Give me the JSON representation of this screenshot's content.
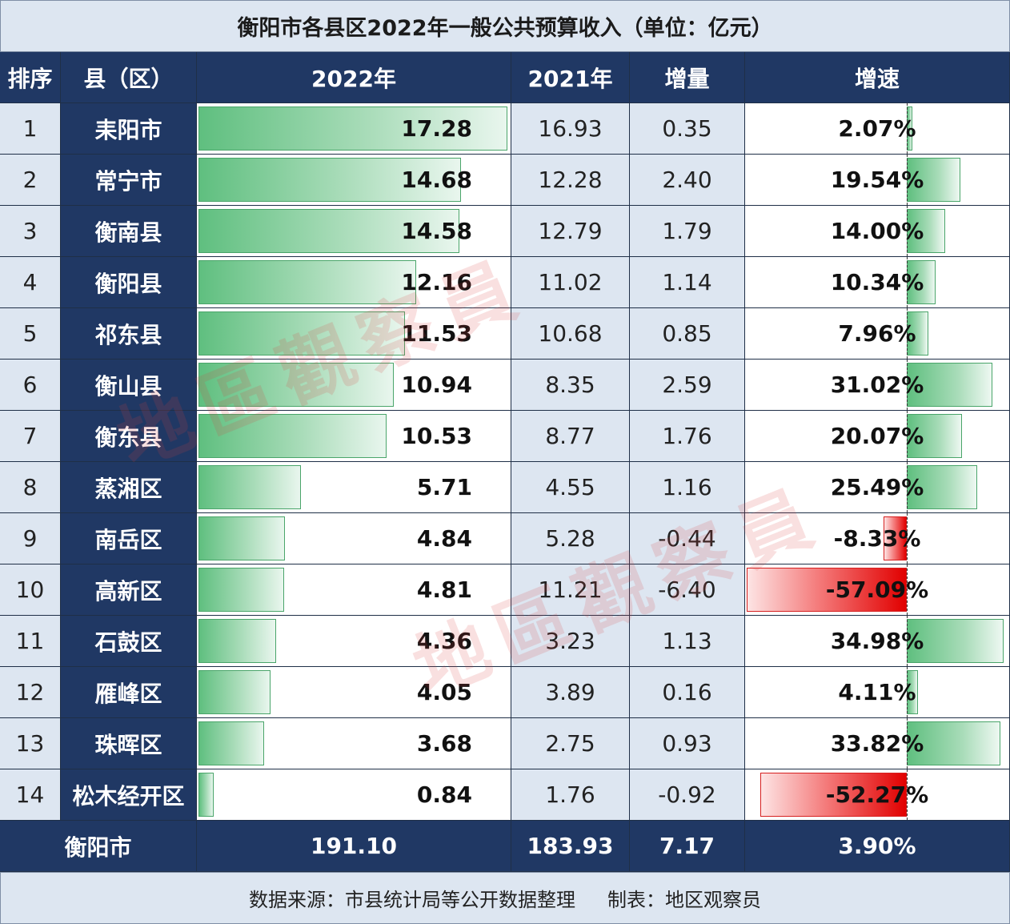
{
  "title": "衡阳市各县区2022年一般公共预算收入（单位：亿元）",
  "headers": {
    "rank": "排序",
    "county": "县（区）",
    "y2022": "2022年",
    "y2021": "2021年",
    "increase": "增量",
    "growth": "增速"
  },
  "chart_data": {
    "type": "table",
    "title": "衡阳市各县区2022年一般公共预算收入（单位：亿元）",
    "columns": [
      "排序",
      "县（区）",
      "2022年",
      "2021年",
      "增量",
      "增速"
    ],
    "rows": [
      {
        "rank": "1",
        "name": "耒阳市",
        "y2022": 17.28,
        "y2022_text": "17.28",
        "y2021": "16.93",
        "inc": "0.35",
        "growth": 2.07,
        "growth_text": "2.07%"
      },
      {
        "rank": "2",
        "name": "常宁市",
        "y2022": 14.68,
        "y2022_text": "14.68",
        "y2021": "12.28",
        "inc": "2.40",
        "growth": 19.54,
        "growth_text": "19.54%"
      },
      {
        "rank": "3",
        "name": "衡南县",
        "y2022": 14.58,
        "y2022_text": "14.58",
        "y2021": "12.79",
        "inc": "1.79",
        "growth": 14.0,
        "growth_text": "14.00%"
      },
      {
        "rank": "4",
        "name": "衡阳县",
        "y2022": 12.16,
        "y2022_text": "12.16",
        "y2021": "11.02",
        "inc": "1.14",
        "growth": 10.34,
        "growth_text": "10.34%"
      },
      {
        "rank": "5",
        "name": "祁东县",
        "y2022": 11.53,
        "y2022_text": "11.53",
        "y2021": "10.68",
        "inc": "0.85",
        "growth": 7.96,
        "growth_text": "7.96%"
      },
      {
        "rank": "6",
        "name": "衡山县",
        "y2022": 10.94,
        "y2022_text": "10.94",
        "y2021": "8.35",
        "inc": "2.59",
        "growth": 31.02,
        "growth_text": "31.02%"
      },
      {
        "rank": "7",
        "name": "衡东县",
        "y2022": 10.53,
        "y2022_text": "10.53",
        "y2021": "8.77",
        "inc": "1.76",
        "growth": 20.07,
        "growth_text": "20.07%"
      },
      {
        "rank": "8",
        "name": "蒸湘区",
        "y2022": 5.71,
        "y2022_text": "5.71",
        "y2021": "4.55",
        "inc": "1.16",
        "growth": 25.49,
        "growth_text": "25.49%"
      },
      {
        "rank": "9",
        "name": "南岳区",
        "y2022": 4.84,
        "y2022_text": "4.84",
        "y2021": "5.28",
        "inc": "-0.44",
        "growth": -8.33,
        "growth_text": "-8.33%"
      },
      {
        "rank": "10",
        "name": "高新区",
        "y2022": 4.81,
        "y2022_text": "4.81",
        "y2021": "11.21",
        "inc": "-6.40",
        "growth": -57.09,
        "growth_text": "-57.09%"
      },
      {
        "rank": "11",
        "name": "石鼓区",
        "y2022": 4.36,
        "y2022_text": "4.36",
        "y2021": "3.23",
        "inc": "1.13",
        "growth": 34.98,
        "growth_text": "34.98%"
      },
      {
        "rank": "12",
        "name": "雁峰区",
        "y2022": 4.05,
        "y2022_text": "4.05",
        "y2021": "3.89",
        "inc": "0.16",
        "growth": 4.11,
        "growth_text": "4.11%"
      },
      {
        "rank": "13",
        "name": "珠晖区",
        "y2022": 3.68,
        "y2022_text": "3.68",
        "y2021": "2.75",
        "inc": "0.93",
        "growth": 33.82,
        "growth_text": "33.82%"
      },
      {
        "rank": "14",
        "name": "松木经开区",
        "y2022": 0.84,
        "y2022_text": "0.84",
        "y2021": "1.76",
        "inc": "-0.92",
        "growth": -52.27,
        "growth_text": "-52.27%"
      }
    ],
    "total": {
      "name": "衡阳市",
      "y2022": "191.10",
      "y2021": "183.93",
      "inc": "7.17",
      "growth": "3.90%"
    }
  },
  "footer": {
    "source": "数据来源：市县统计局等公开数据整理",
    "maker": "制表：地区观察员"
  },
  "watermark": "地區觀察員",
  "colors": {
    "header_bg": "#203864",
    "light_bg": "#dde6f1",
    "positive_bar": "#5fbf7f",
    "negative_bar": "#e10000"
  }
}
